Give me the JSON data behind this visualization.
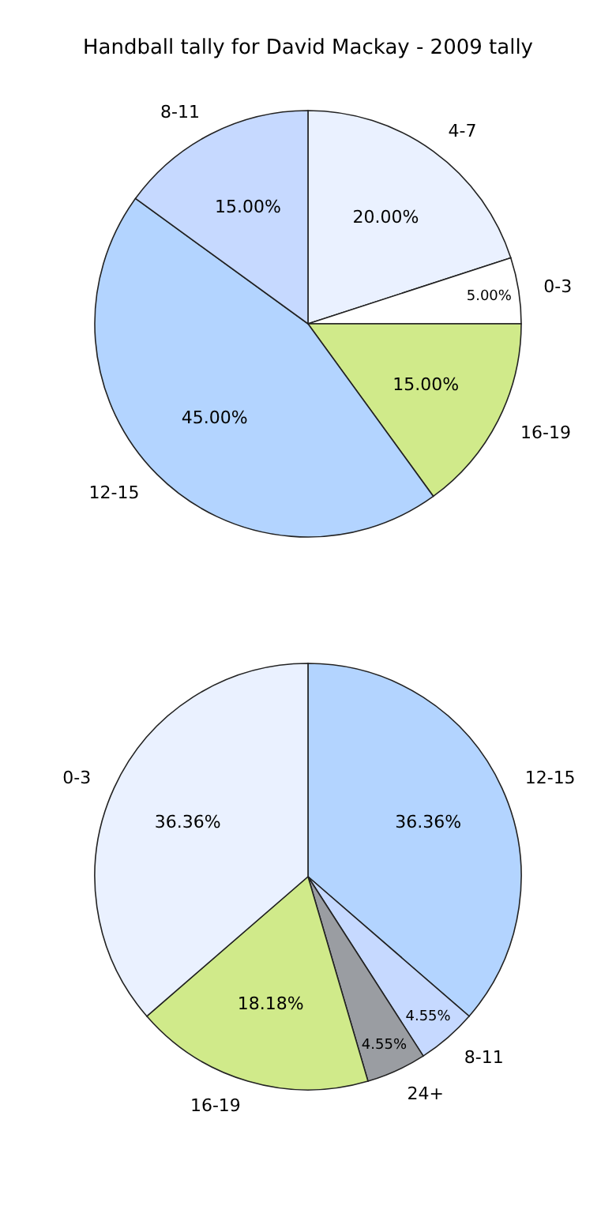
{
  "chart_data": [
    {
      "type": "pie",
      "title": "Handball tally for David Mackay - 2009 tally",
      "categories": [
        "4-7",
        "0-3",
        "16-19",
        "12-15",
        "8-11"
      ],
      "values": [
        20,
        5,
        15,
        45,
        15
      ],
      "value_labels": [
        "20.00%",
        "5.00%",
        "15.00%",
        "45.00%",
        "15.00%"
      ],
      "colors": [
        "#eaf1ff",
        "#ffffff",
        "#d0ea8a",
        "#b3d4ff",
        "#c6d9ff"
      ]
    },
    {
      "type": "pie",
      "categories": [
        "12-15",
        "8-11",
        "24+",
        "16-19",
        "0-3"
      ],
      "values": [
        36.36,
        4.55,
        4.55,
        18.18,
        36.36
      ],
      "value_labels": [
        "36.36%",
        "4.55%",
        "4.55%",
        "18.18%",
        "36.36%"
      ],
      "colors": [
        "#b3d4ff",
        "#c6d9ff",
        "#9a9da2",
        "#d0ea8a",
        "#eaf1ff"
      ]
    }
  ]
}
